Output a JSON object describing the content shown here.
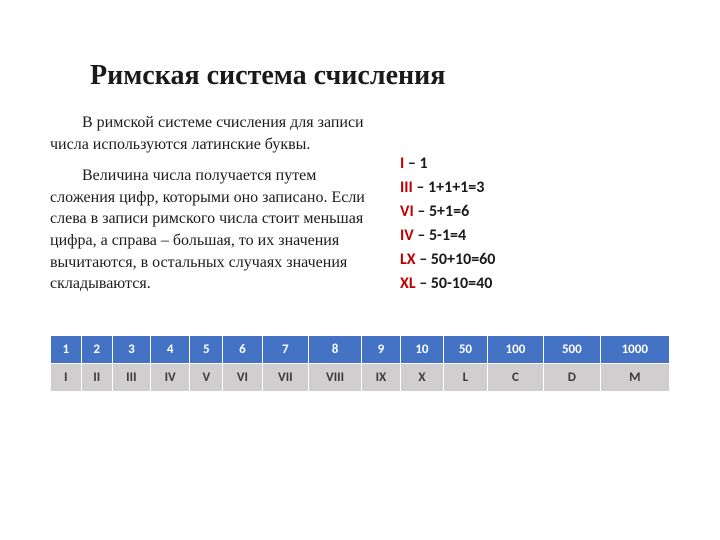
{
  "title": "Римская система счисления",
  "paragraphs": [
    "В римской системе счисления для записи числа используются латинские буквы.",
    "Величина числа получается путем сложения цифр, которыми оно записано. Если слева в записи римского числа стоит меньшая цифра, а справа – большая, то их значения вычитаются, в остальных случаях значения складываются."
  ],
  "examples": [
    {
      "roman": "I",
      "rest": " – 1"
    },
    {
      "roman": "III",
      "rest": " – 1+1+1=3"
    },
    {
      "roman": "VI",
      "rest": " – 5+1=6"
    },
    {
      "roman": "IV",
      "rest": " – 5-1=4"
    },
    {
      "roman": "LX",
      "rest": " – 50+10=60"
    },
    {
      "roman": "XL",
      "rest": " – 50-10=40"
    }
  ],
  "table": {
    "type": "table",
    "header_bg": "#4472c4",
    "header_fg": "#ffffff",
    "body_bg": "#d0cece",
    "body_fg": "#3b3b3b",
    "columns": [
      "1",
      "2",
      "3",
      "4",
      "5",
      "6",
      "7",
      "8",
      "9",
      "10",
      "50",
      "100",
      "500",
      "1000"
    ],
    "rows": [
      [
        "I",
        "II",
        "III",
        "IV",
        "V",
        "VI",
        "VII",
        "VIII",
        "IX",
        "X",
        "L",
        "C",
        "D",
        "M"
      ]
    ]
  },
  "colors": {
    "roman_accent": "#c00000",
    "text": "#1a1a1a",
    "background": "#ffffff"
  }
}
